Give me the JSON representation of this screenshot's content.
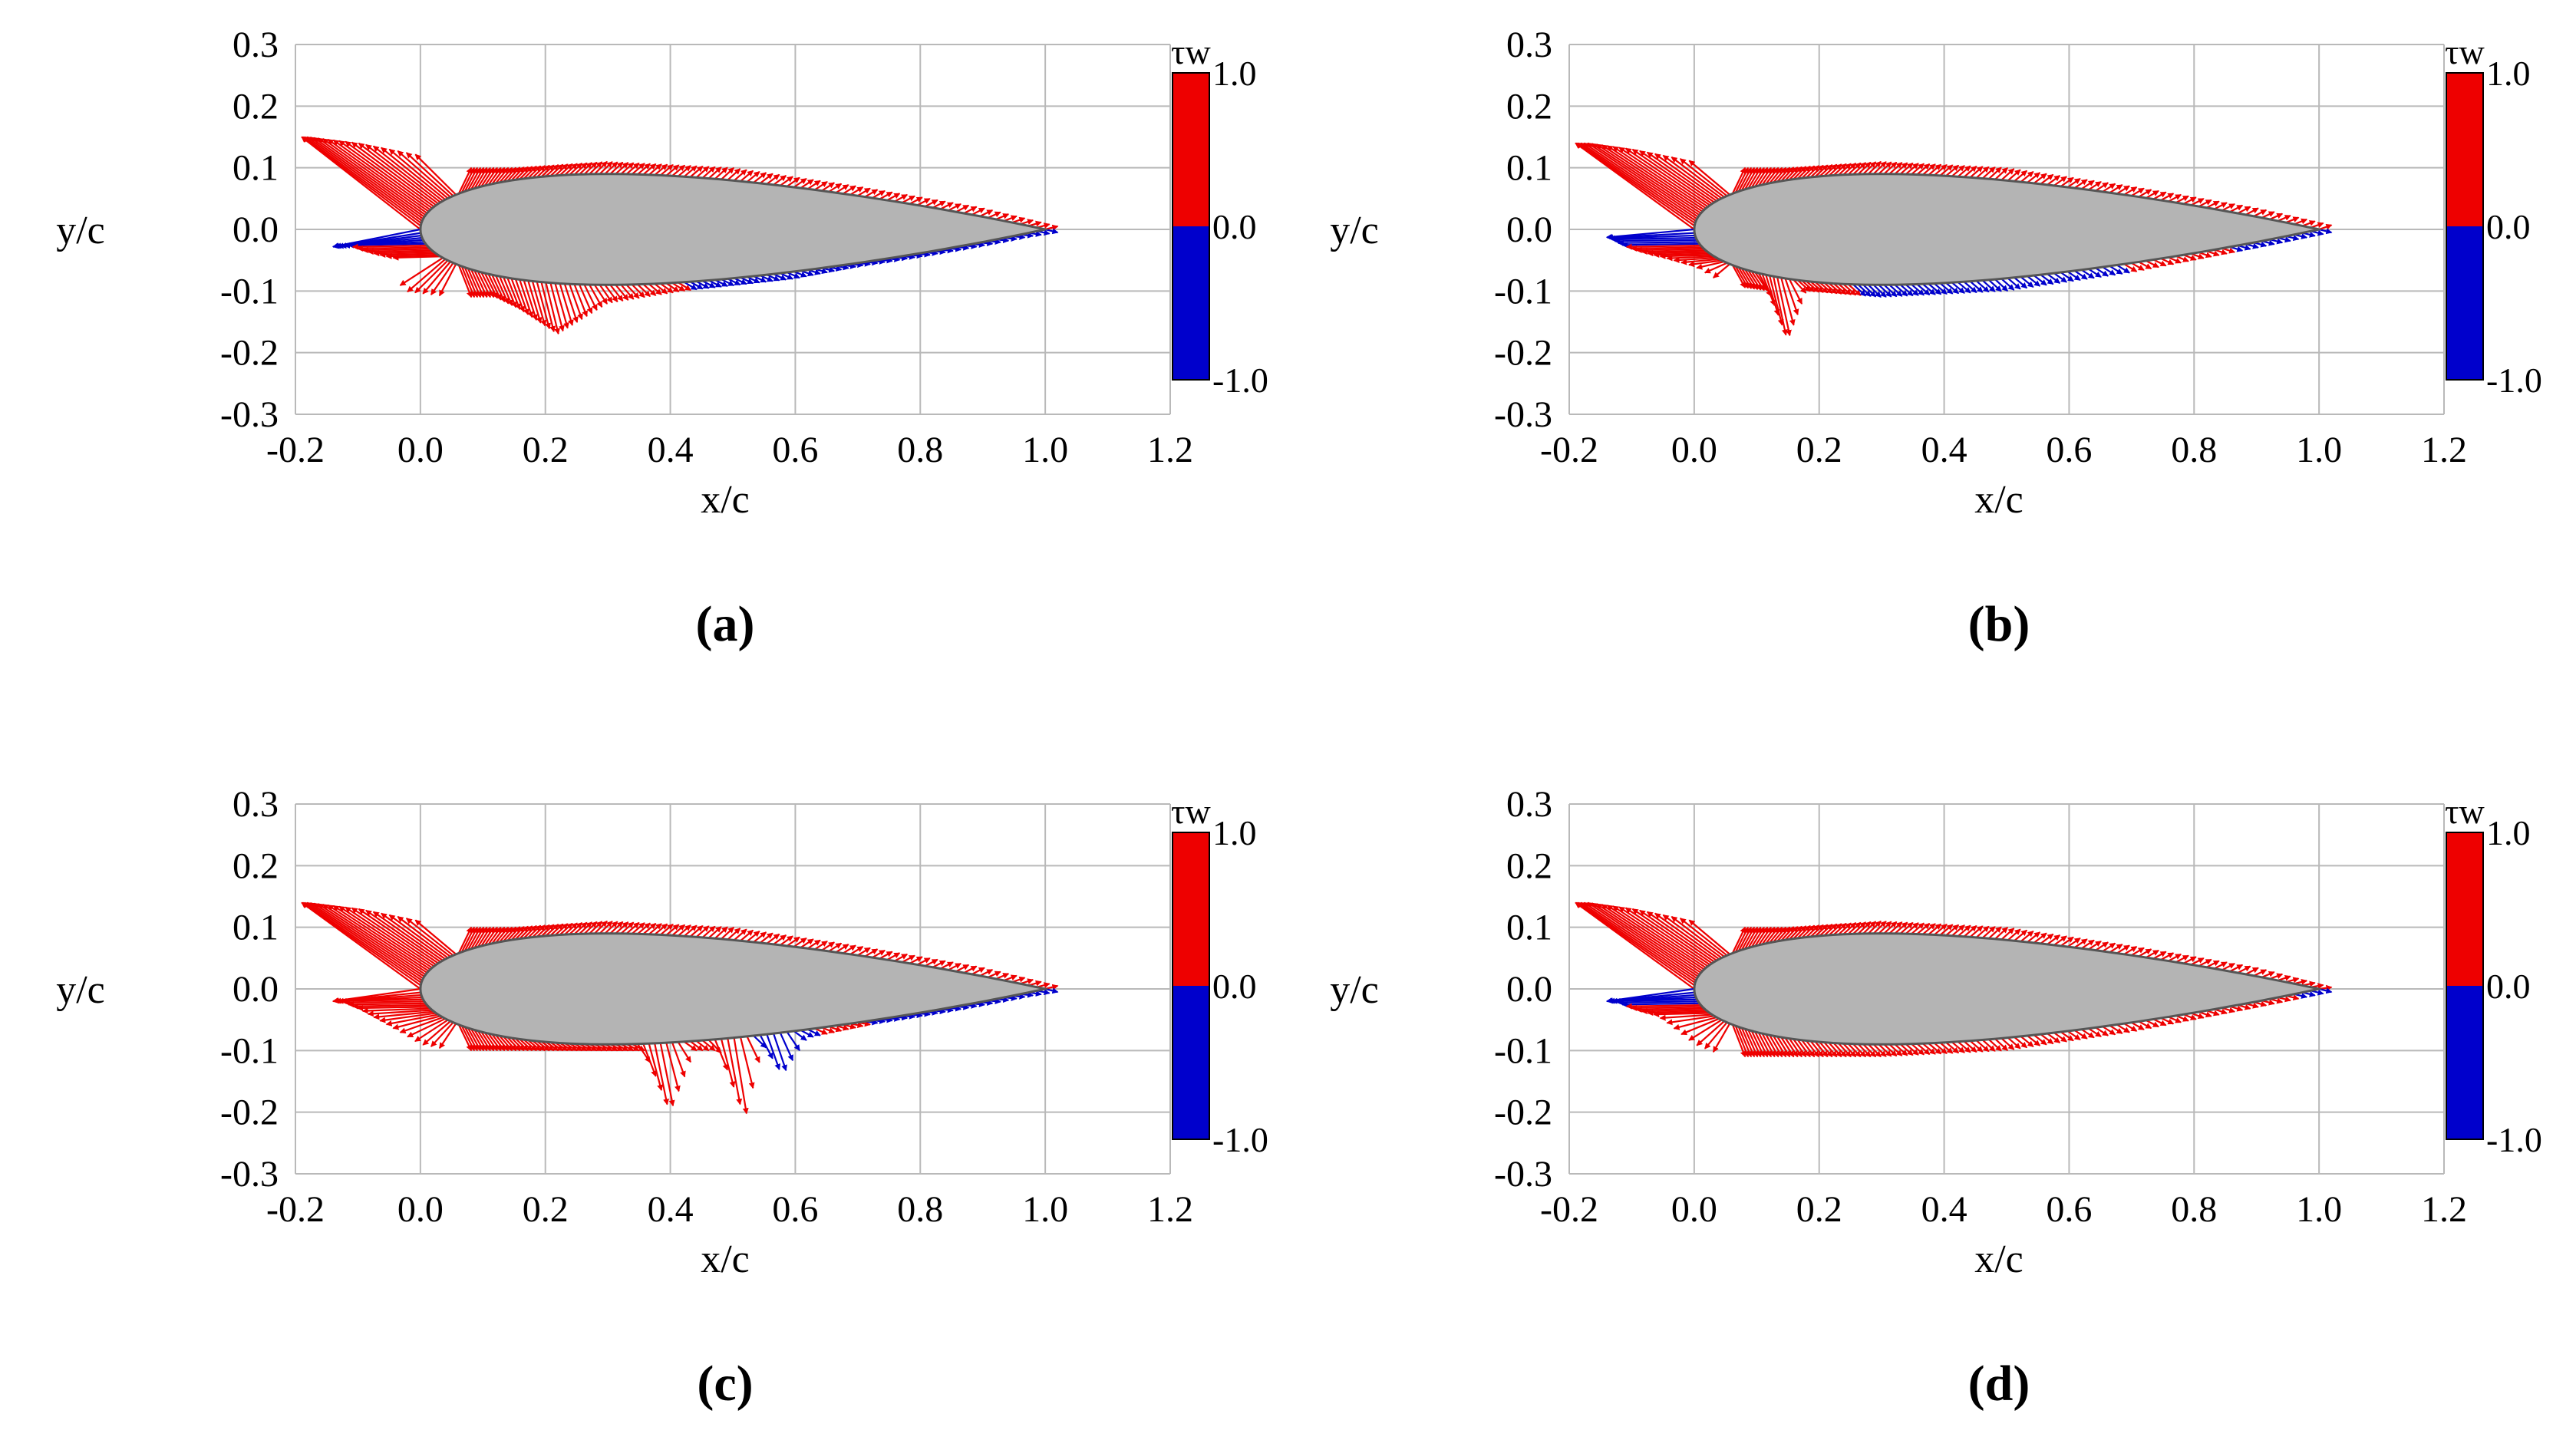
{
  "colors": {
    "positive": "#ee0000",
    "negative": "#0000cc",
    "airfoil_fill": "#b4b4b4",
    "airfoil_edge": "#555555",
    "grid": "#b9b9b9"
  },
  "chart_data": [
    {
      "type": "vector",
      "panel_label": "(a)",
      "xlabel": "x/c",
      "ylabel": "y/c",
      "xlim": [
        -0.2,
        1.2
      ],
      "ylim": [
        -0.3,
        0.3
      ],
      "xticks": [
        "-0.2",
        "0.0",
        "0.2",
        "0.4",
        "0.6",
        "0.8",
        "1.0",
        "1.2"
      ],
      "yticks": [
        "0.3",
        "0.2",
        "0.1",
        "0.0",
        "-0.1",
        "-0.2",
        "-0.3"
      ],
      "colorbar": {
        "title": "τw",
        "max_label": "1.0",
        "mid_label": "0.0",
        "min_label": "-1.0"
      },
      "upper_envelope": [
        [
          -0.18,
          0.15
        ],
        [
          -0.1,
          0.14
        ],
        [
          0.0,
          0.12
        ],
        [
          0.05,
          0.1
        ],
        [
          0.15,
          0.1
        ],
        [
          0.3,
          0.11
        ],
        [
          0.5,
          0.1
        ],
        [
          0.7,
          0.07
        ],
        [
          0.9,
          0.035
        ],
        [
          1.02,
          0.005
        ]
      ],
      "lower_envelope": [
        [
          -0.16,
          -0.03
        ],
        [
          -0.05,
          -0.02
        ],
        [
          -0.03,
          -0.1
        ],
        [
          0.05,
          -0.11
        ],
        [
          0.12,
          -0.11
        ],
        [
          0.16,
          -0.13
        ],
        [
          0.22,
          -0.17
        ],
        [
          0.3,
          -0.12
        ],
        [
          0.42,
          -0.1
        ],
        [
          0.6,
          -0.08
        ],
        [
          0.8,
          -0.04
        ],
        [
          0.95,
          -0.015
        ],
        [
          1.02,
          -0.005
        ]
      ],
      "negative_ranges": {
        "upper": [],
        "lower": [
          [
            0.42,
            1.0
          ]
        ],
        "leading_edge": true
      }
    },
    {
      "type": "vector",
      "panel_label": "(b)",
      "xlabel": "x/c",
      "ylabel": "y/c",
      "xlim": [
        -0.2,
        1.2
      ],
      "ylim": [
        -0.3,
        0.3
      ],
      "xticks": [
        "-0.2",
        "0.0",
        "0.2",
        "0.4",
        "0.6",
        "0.8",
        "1.0",
        "1.2"
      ],
      "yticks": [
        "0.3",
        "0.2",
        "0.1",
        "0.0",
        "-0.1",
        "-0.2",
        "-0.3"
      ],
      "colorbar": {
        "title": "τw",
        "max_label": "1.0",
        "mid_label": "0.0",
        "min_label": "-1.0"
      },
      "upper_envelope": [
        [
          -0.17,
          0.14
        ],
        [
          -0.1,
          0.13
        ],
        [
          0.0,
          0.11
        ],
        [
          0.05,
          0.1
        ],
        [
          0.15,
          0.1
        ],
        [
          0.3,
          0.11
        ],
        [
          0.5,
          0.1
        ],
        [
          0.7,
          0.07
        ],
        [
          0.9,
          0.035
        ],
        [
          1.05,
          0.0
        ]
      ],
      "lower_envelope": [
        [
          -0.17,
          0.0
        ],
        [
          -0.1,
          -0.03
        ],
        [
          0.0,
          -0.06
        ],
        [
          0.05,
          -0.09
        ],
        [
          0.12,
          -0.1
        ],
        [
          0.15,
          -0.18
        ],
        [
          0.18,
          -0.1
        ],
        [
          0.3,
          -0.11
        ],
        [
          0.5,
          -0.1
        ],
        [
          0.7,
          -0.07
        ],
        [
          0.9,
          -0.03
        ],
        [
          1.02,
          -0.005
        ]
      ],
      "negative_ranges": {
        "upper": [],
        "lower": [
          [
            0.25,
            0.68
          ],
          [
            0.85,
            1.0
          ]
        ],
        "leading_edge": true
      }
    },
    {
      "type": "vector",
      "panel_label": "(c)",
      "xlabel": "x/c",
      "ylabel": "y/c",
      "xlim": [
        -0.2,
        1.2
      ],
      "ylim": [
        -0.3,
        0.3
      ],
      "xticks": [
        "-0.2",
        "0.0",
        "0.2",
        "0.4",
        "0.6",
        "0.8",
        "1.0",
        "1.2"
      ],
      "yticks": [
        "0.3",
        "0.2",
        "0.1",
        "0.0",
        "-0.1",
        "-0.2",
        "-0.3"
      ],
      "colorbar": {
        "title": "τw",
        "max_label": "1.0",
        "mid_label": "0.0",
        "min_label": "-1.0"
      },
      "upper_envelope": [
        [
          -0.18,
          0.14
        ],
        [
          -0.1,
          0.13
        ],
        [
          0.0,
          0.11
        ],
        [
          0.05,
          0.1
        ],
        [
          0.15,
          0.1
        ],
        [
          0.3,
          0.11
        ],
        [
          0.5,
          0.1
        ],
        [
          0.7,
          0.07
        ],
        [
          0.9,
          0.035
        ],
        [
          1.02,
          0.005
        ]
      ],
      "lower_envelope": [
        [
          -0.12,
          -0.02
        ],
        [
          -0.05,
          -0.06
        ],
        [
          0.0,
          -0.09
        ],
        [
          0.05,
          -0.1
        ],
        [
          0.15,
          -0.1
        ],
        [
          0.3,
          -0.1
        ],
        [
          0.36,
          -0.1
        ],
        [
          0.4,
          -0.2
        ],
        [
          0.44,
          -0.1
        ],
        [
          0.48,
          -0.1
        ],
        [
          0.52,
          -0.21
        ],
        [
          0.55,
          -0.09
        ],
        [
          0.58,
          -0.14
        ],
        [
          0.62,
          -0.08
        ],
        [
          0.8,
          -0.04
        ],
        [
          0.95,
          -0.015
        ],
        [
          1.02,
          -0.005
        ]
      ],
      "negative_ranges": {
        "upper": [],
        "lower": [
          [
            0.53,
            0.62
          ],
          [
            0.7,
            1.0
          ]
        ],
        "leading_edge": false
      }
    },
    {
      "type": "vector",
      "panel_label": "(d)",
      "xlabel": "x/c",
      "ylabel": "y/c",
      "xlim": [
        -0.2,
        1.2
      ],
      "ylim": [
        -0.3,
        0.3
      ],
      "xticks": [
        "-0.2",
        "0.0",
        "0.2",
        "0.4",
        "0.6",
        "0.8",
        "1.0",
        "1.2"
      ],
      "yticks": [
        "0.3",
        "0.2",
        "0.1",
        "0.0",
        "-0.1",
        "-0.2",
        "-0.3"
      ],
      "colorbar": {
        "title": "τw",
        "max_label": "1.0",
        "mid_label": "0.0",
        "min_label": "-1.0"
      },
      "upper_envelope": [
        [
          -0.17,
          0.14
        ],
        [
          -0.1,
          0.13
        ],
        [
          0.0,
          0.11
        ],
        [
          0.05,
          0.1
        ],
        [
          0.15,
          0.1
        ],
        [
          0.3,
          0.11
        ],
        [
          0.5,
          0.1
        ],
        [
          0.7,
          0.07
        ],
        [
          0.9,
          0.035
        ],
        [
          1.03,
          0.0
        ]
      ],
      "lower_envelope": [
        [
          -0.1,
          -0.02
        ],
        [
          -0.05,
          -0.05
        ],
        [
          0.0,
          -0.09
        ],
        [
          0.05,
          -0.11
        ],
        [
          0.15,
          -0.11
        ],
        [
          0.3,
          -0.11
        ],
        [
          0.5,
          -0.1
        ],
        [
          0.7,
          -0.07
        ],
        [
          0.9,
          -0.03
        ],
        [
          1.02,
          -0.005
        ]
      ],
      "negative_ranges": {
        "upper": [],
        "lower": [
          [
            0.95,
            1.0
          ]
        ],
        "leading_edge": true
      }
    }
  ]
}
